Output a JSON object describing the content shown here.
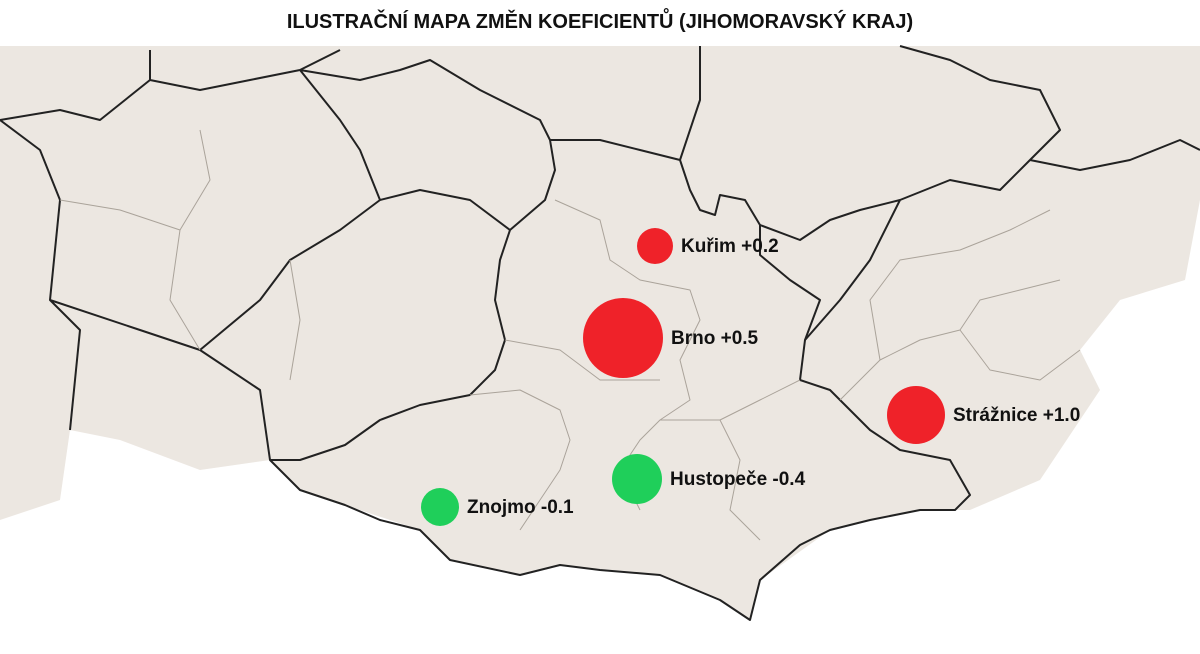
{
  "title": "ILUSTRAČNÍ MAPA ZMĚN KOEFICIENTŮ (JIHOMORAVSKÝ KRAJ)",
  "colors": {
    "positive": "#ef2229",
    "negative": "#1fcf5a"
  },
  "points": [
    {
      "label": "Kuřim +0.2",
      "value": 0.2
    },
    {
      "label": "Brno +0.5",
      "value": 0.5
    },
    {
      "label": "Strážnice +1.0",
      "value": 1.0
    },
    {
      "label": "Hustopeče -0.4",
      "value": -0.4
    },
    {
      "label": "Znojmo -0.1",
      "value": -0.1
    }
  ]
}
